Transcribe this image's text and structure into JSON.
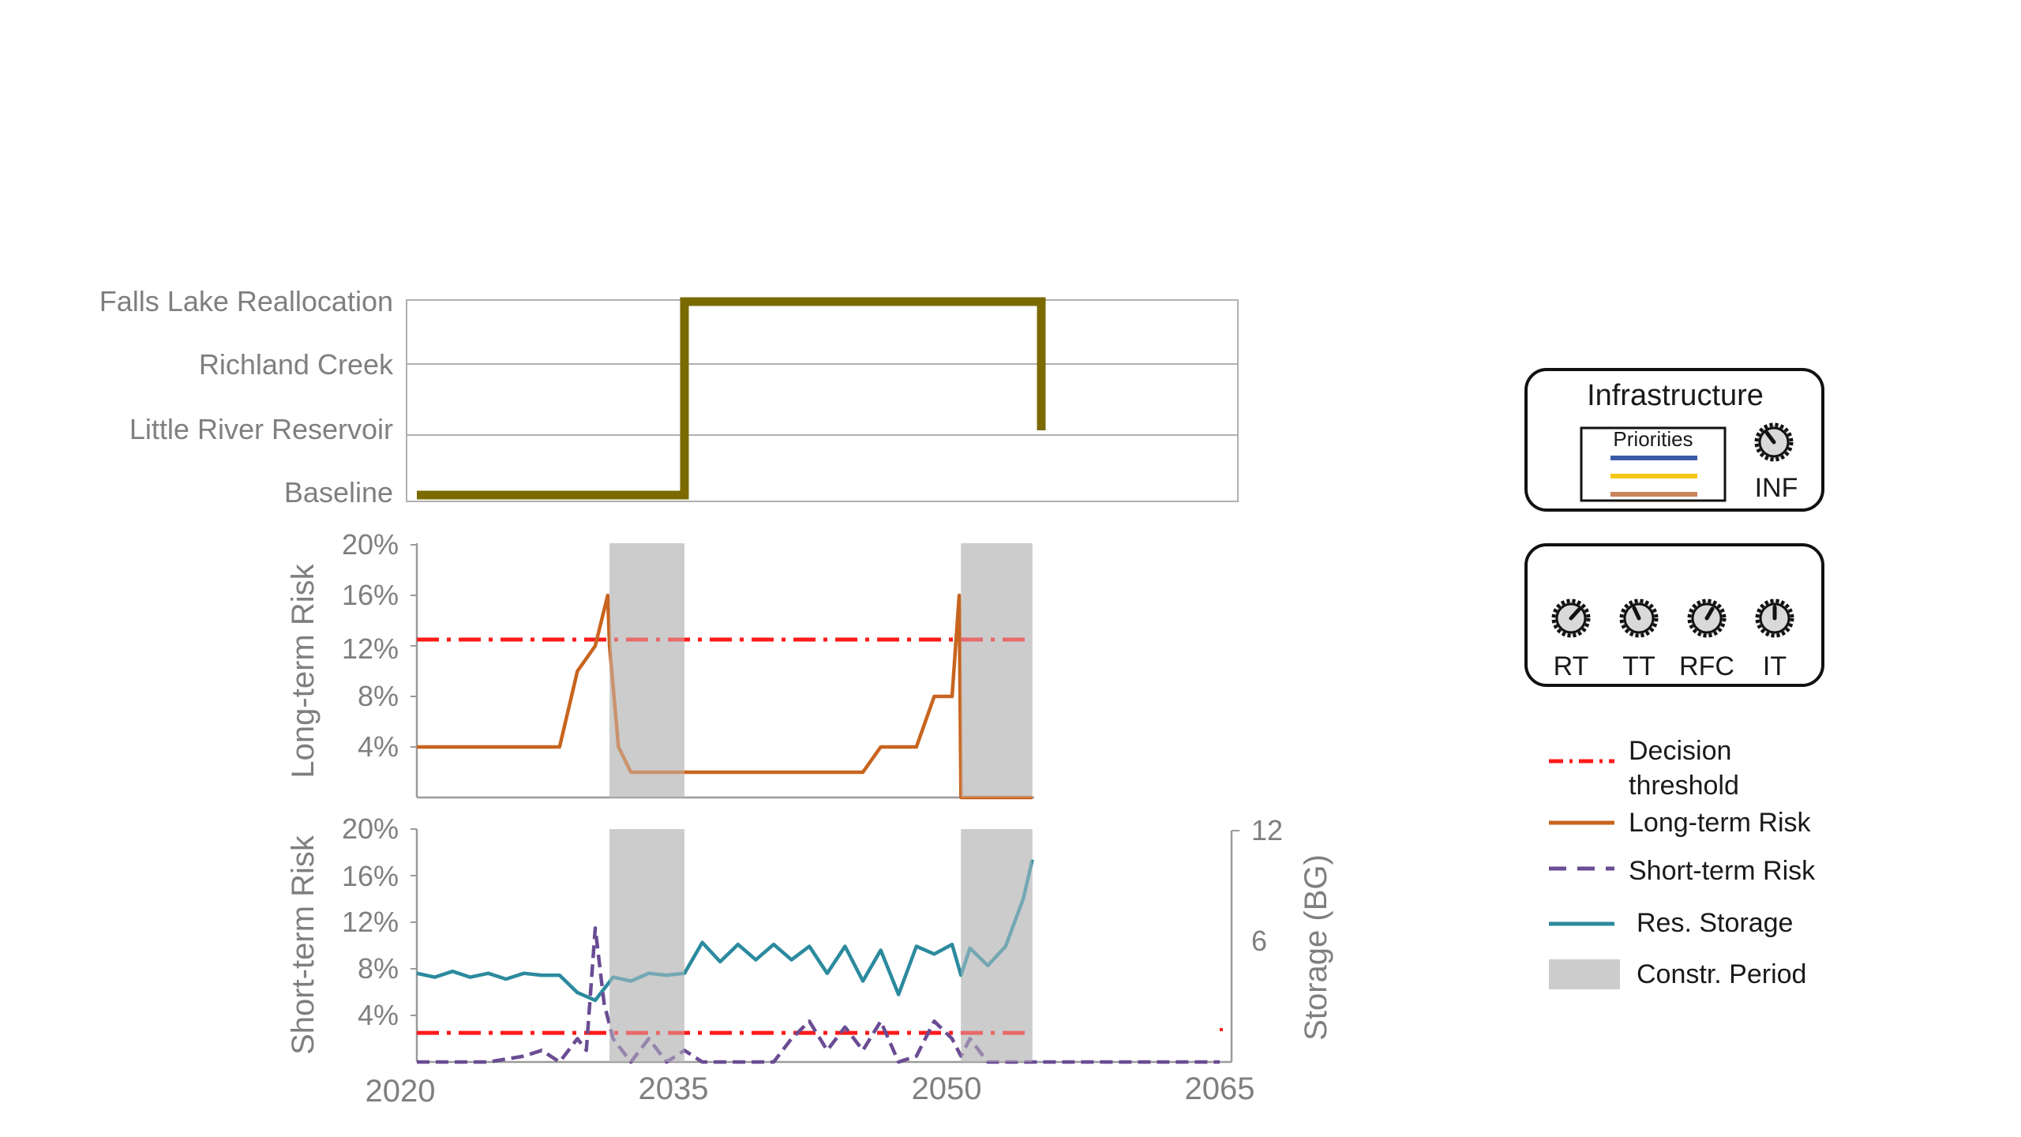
{
  "chart_data": [
    {
      "type": "line",
      "panel": "infrastructure",
      "categories": [
        "Baseline",
        "Little River Reservoir",
        "Richland Creek",
        "Falls Lake Reallocation"
      ],
      "series": [
        {
          "color": "#7a6a00",
          "x": [
            2020,
            2035,
            2035,
            2055,
            2055
          ],
          "y": [
            "Baseline",
            "Baseline",
            "Falls Lake Reallocation",
            "Falls Lake Reallocation",
            "Little River Reservoir"
          ]
        }
      ],
      "xlim": [
        2020,
        2065
      ],
      "grid": true
    },
    {
      "type": "line",
      "panel": "long-term",
      "ylabel": "Long-term Risk",
      "yticks": [
        "4%",
        "8%",
        "12%",
        "16%",
        "20%"
      ],
      "ylim": [
        0,
        20
      ],
      "xlim": [
        2020,
        2065
      ],
      "series": [
        {
          "name": "Long-term Risk",
          "color": "#c8641e",
          "x": [
            2020,
            2028,
            2029,
            2030,
            2030.7,
            2030.8,
            2031.3,
            2032,
            2035,
            2040,
            2045,
            2046,
            2047,
            2048,
            2049,
            2050,
            2050.4,
            2050.5,
            2050.6,
            2054.5
          ],
          "y": [
            4,
            4,
            10,
            12,
            16,
            12,
            4,
            2,
            2,
            2,
            2,
            4,
            4,
            4,
            8,
            8,
            16,
            0,
            0,
            0
          ]
        },
        {
          "name": "Decision threshold",
          "color": "#ff1a1a",
          "x": [
            2020,
            2054.5
          ],
          "y": [
            12.5,
            12.5
          ]
        }
      ]
    },
    {
      "type": "line",
      "panel": "short-term",
      "ylabel": "Short-term Risk",
      "y2label": "Storage (BG)",
      "yticks": [
        "4%",
        "8%",
        "12%",
        "16%",
        "20%"
      ],
      "y2ticks": [
        "6",
        "12"
      ],
      "ylim": [
        0,
        20
      ],
      "y2lim": [
        0,
        12
      ],
      "xticks": [
        "2020",
        "2035",
        "2050",
        "2065"
      ],
      "xlim": [
        2020,
        2065
      ],
      "series": [
        {
          "name": "Short-term Risk",
          "color": "#6a4c93",
          "x": [
            2020,
            2022,
            2024,
            2026,
            2027,
            2028,
            2029,
            2029.5,
            2030,
            2030.5,
            2031,
            2031.5,
            2032,
            2033,
            2034,
            2035,
            2036,
            2040,
            2041,
            2042,
            2043,
            2044,
            2045,
            2046,
            2047,
            2048,
            2049,
            2050,
            2050.5,
            2051,
            2051.5,
            2052,
            2053,
            2055,
            2065
          ],
          "y": [
            0,
            0,
            0,
            0.5,
            1,
            0,
            2,
            1,
            11.5,
            5,
            2,
            1,
            0,
            2,
            0,
            1,
            0,
            0,
            2,
            3.5,
            1,
            3,
            1,
            3.5,
            0,
            0.5,
            3.5,
            2,
            0.5,
            2,
            1,
            0,
            0,
            0,
            0
          ]
        },
        {
          "name": "Res. Storage",
          "axis": "y2",
          "color": "#2b8a9e",
          "x": [
            2020,
            2021,
            2022,
            2023,
            2024,
            2025,
            2026,
            2027,
            2028,
            2029,
            2030,
            2031,
            2032,
            2033,
            2034,
            2035,
            2036,
            2037,
            2038,
            2039,
            2040,
            2041,
            2042,
            2043,
            2044,
            2045,
            2046,
            2047,
            2048,
            2049,
            2050,
            2050.5,
            2051,
            2052,
            2053,
            2054,
            2054.5
          ],
          "y": [
            4.6,
            4.4,
            4.7,
            4.4,
            4.6,
            4.3,
            4.6,
            4.5,
            4.5,
            3.6,
            3.2,
            4.4,
            4.2,
            4.6,
            4.5,
            4.6,
            6.2,
            5.2,
            6.1,
            5.3,
            6.1,
            5.3,
            6.0,
            4.6,
            6.0,
            4.2,
            5.8,
            3.5,
            6.0,
            5.6,
            6.1,
            4.5,
            5.9,
            5.0,
            6.0,
            8.5,
            10.5
          ]
        },
        {
          "name": "Decision threshold",
          "color": "#ff1a1a",
          "x": [
            2020,
            2054.5
          ],
          "y": [
            2.5,
            2.5
          ]
        }
      ]
    }
  ],
  "infra": {
    "levels": [
      "Falls Lake Reallocation",
      "Richland Creek",
      "Little River Reservoir",
      "Baseline"
    ]
  },
  "long": {
    "ylabel": "Long-term Risk",
    "ticks": [
      "20%",
      "16%",
      "12%",
      "8%",
      "4%"
    ]
  },
  "short": {
    "ylabel": "Short-term Risk",
    "ticks": [
      "20%",
      "16%",
      "12%",
      "8%",
      "4%"
    ],
    "y2label": "Storage (BG)",
    "y2ticks": [
      "12",
      "6"
    ]
  },
  "xaxis": {
    "ticks": [
      "2020",
      "2035",
      "2050",
      "2065"
    ]
  },
  "construction_periods": [
    [
      2030.8,
      2035
    ],
    [
      2050.5,
      2054.5
    ]
  ],
  "panel_box1": {
    "title": "Infrastructure",
    "priorities": "Priorities",
    "priority_colors": [
      "#3a5aa6",
      "#f5c518",
      "#c8845a"
    ],
    "dial_label": "INF"
  },
  "panel_box2": {
    "dials": [
      "RT",
      "TT",
      "RFC",
      "IT"
    ]
  },
  "legend": {
    "decision_line1": "Decision",
    "decision_line2": "threshold",
    "long_term": "Long-term Risk",
    "short_term": "Short-term Risk",
    "storage": "Res. Storage",
    "constr": "Constr. Period"
  },
  "colors": {
    "infra": "#7a6a00",
    "long_term": "#c8641e",
    "short_term": "#6a4c93",
    "storage": "#2b8a9e",
    "threshold": "#ff1a1a",
    "constr": "#cccccc"
  }
}
